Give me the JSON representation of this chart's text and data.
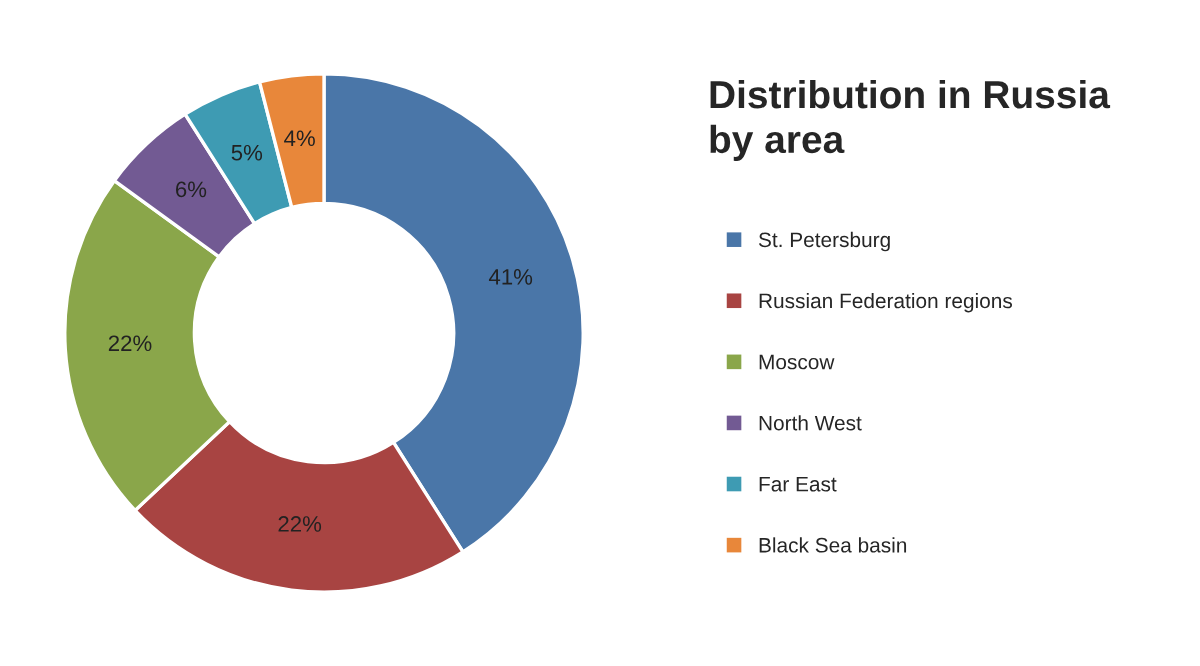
{
  "chart_data": {
    "type": "donut",
    "title": "Distribution in Russia\nby area",
    "categories": [
      "St. Petersburg",
      "Russian Federation regions",
      "Moscow",
      "North West",
      "Far East",
      "Black Sea basin"
    ],
    "values": [
      41,
      22,
      22,
      6,
      5,
      4
    ],
    "colors": [
      "#4a76a8",
      "#a84442",
      "#8aa64a",
      "#725a93",
      "#3e9bb3",
      "#e8873a"
    ],
    "value_labels": [
      "41%",
      "22%",
      "22%",
      "6%",
      "5%",
      "4%"
    ],
    "legend": "right"
  }
}
